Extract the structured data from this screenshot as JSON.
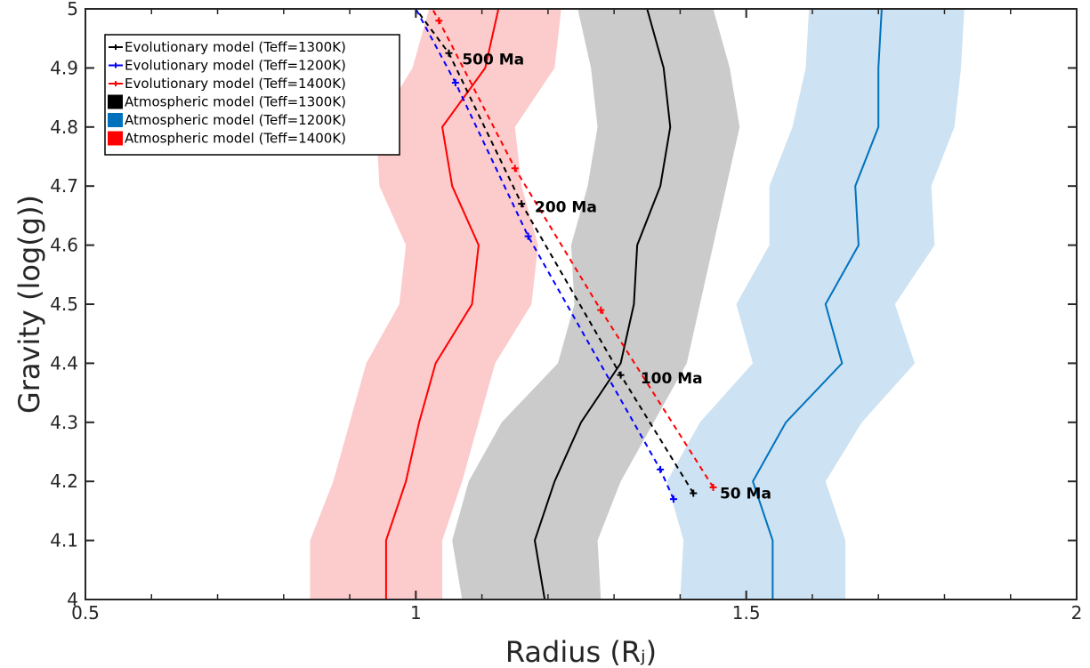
{
  "chart_data": {
    "type": "line",
    "xlabel": "Radius (Rⱼ)",
    "ylabel": "Gravity (log(g))",
    "xlim": [
      0.5,
      2
    ],
    "ylim": [
      4,
      5
    ],
    "xticks": [
      0.5,
      1,
      1.5,
      2
    ],
    "xtick_labels": [
      "0.5",
      "1",
      "1.5",
      "2"
    ],
    "yticks": [
      4,
      4.1,
      4.2,
      4.3,
      4.4,
      4.5,
      4.6,
      4.7,
      4.8,
      4.9,
      5
    ],
    "ytick_labels": [
      "4",
      "4.1",
      "4.2",
      "4.3",
      "4.4",
      "4.5",
      "4.6",
      "4.7",
      "4.8",
      "4.9",
      "5"
    ],
    "grid": false,
    "legend_position": "top-left",
    "atmospheric_models": [
      {
        "name": "Atmospheric model (Teff=1300K)",
        "color": "#000000",
        "band_color": "#cbcbcb",
        "y": [
          4.0,
          4.1,
          4.2,
          4.3,
          4.4,
          4.5,
          4.6,
          4.7,
          4.8,
          4.9,
          5.0
        ],
        "center": [
          1.195,
          1.18,
          1.21,
          1.25,
          1.31,
          1.33,
          1.335,
          1.37,
          1.385,
          1.375,
          1.35
        ],
        "lower": [
          1.07,
          1.055,
          1.08,
          1.13,
          1.215,
          1.24,
          1.235,
          1.26,
          1.275,
          1.265,
          1.245
        ],
        "upper": [
          1.28,
          1.275,
          1.31,
          1.36,
          1.41,
          1.43,
          1.45,
          1.47,
          1.49,
          1.475,
          1.45
        ]
      },
      {
        "name": "Atmospheric model (Teff=1200K)",
        "color": "#0072bd",
        "band_color": "#cde2f2",
        "y": [
          4.0,
          4.1,
          4.2,
          4.3,
          4.4,
          4.5,
          4.6,
          4.7,
          4.8,
          4.9,
          5.0
        ],
        "center": [
          1.54,
          1.54,
          1.51,
          1.56,
          1.645,
          1.62,
          1.67,
          1.665,
          1.7,
          1.7,
          1.705
        ],
        "lower": [
          1.4,
          1.405,
          1.38,
          1.43,
          1.51,
          1.485,
          1.535,
          1.535,
          1.57,
          1.59,
          1.595
        ],
        "upper": [
          1.65,
          1.65,
          1.62,
          1.675,
          1.755,
          1.725,
          1.785,
          1.78,
          1.815,
          1.825,
          1.83
        ]
      },
      {
        "name": "Atmospheric model (Teff=1400K)",
        "color": "#ff0000",
        "band_color": "#fccbcb",
        "y": [
          4.0,
          4.1,
          4.2,
          4.3,
          4.4,
          4.5,
          4.6,
          4.7,
          4.8,
          4.9,
          5.0
        ],
        "center": [
          0.955,
          0.955,
          0.985,
          1.005,
          1.03,
          1.085,
          1.095,
          1.055,
          1.04,
          1.105,
          1.125
        ],
        "lower": [
          0.84,
          0.84,
          0.875,
          0.9,
          0.925,
          0.975,
          0.985,
          0.945,
          0.94,
          0.995,
          1.02
        ],
        "upper": [
          1.04,
          1.04,
          1.07,
          1.095,
          1.12,
          1.175,
          1.185,
          1.16,
          1.15,
          1.21,
          1.22
        ]
      }
    ],
    "evolutionary_models": [
      {
        "name": "Evolutionary model (Teff=1300K)",
        "color": "#000000",
        "x": [
          1.42,
          1.31,
          1.16,
          1.05,
          1.0
        ],
        "y": [
          4.18,
          4.38,
          4.67,
          4.925,
          5.0
        ]
      },
      {
        "name": "Evolutionary model (Teff=1200K)",
        "color": "#0000ff",
        "x": [
          1.39,
          1.37,
          1.17,
          1.06,
          1.0
        ],
        "y": [
          4.17,
          4.22,
          4.615,
          4.875,
          5.0
        ]
      },
      {
        "name": "Evolutionary model (Teff=1400K)",
        "color": "#ff0000",
        "x": [
          1.45,
          1.28,
          1.15,
          1.035,
          1.025
        ],
        "y": [
          4.19,
          4.49,
          4.73,
          4.98,
          5.0
        ]
      }
    ],
    "annotations": [
      {
        "text": "500 Ma",
        "x": 1.07,
        "y": 4.915
      },
      {
        "text": "200 Ma",
        "x": 1.18,
        "y": 4.665
      },
      {
        "text": "100 Ma",
        "x": 1.34,
        "y": 4.375
      },
      {
        "text": "50 Ma",
        "x": 1.46,
        "y": 4.18
      }
    ],
    "legend": [
      {
        "label": "Evolutionary model (Teff=1300K)",
        "kind": "line",
        "color": "#000000"
      },
      {
        "label": "Evolutionary model (Teff=1200K)",
        "kind": "line",
        "color": "#0000ff"
      },
      {
        "label": "Evolutionary model (Teff=1400K)",
        "kind": "line",
        "color": "#ff0000"
      },
      {
        "label": "Atmospheric model (Teff=1300K)",
        "kind": "patch",
        "color": "#000000"
      },
      {
        "label": "Atmospheric model (Teff=1200K)",
        "kind": "patch",
        "color": "#0072bd"
      },
      {
        "label": "Atmospheric model (Teff=1400K)",
        "kind": "patch",
        "color": "#ff0000"
      }
    ]
  }
}
